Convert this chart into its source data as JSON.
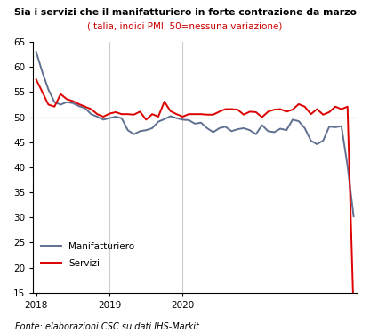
{
  "title_line1": "Sia i servizi che il manifatturiero in forte contrazione da marzo",
  "title_line2": "(Italia, indici PMI, 50=nessuna variazione)",
  "footnote": "Fonte: elaborazioni CSC su dati IHS-Markit.",
  "ylim": [
    15,
    65
  ],
  "yticks": [
    15,
    20,
    25,
    30,
    35,
    40,
    45,
    50,
    55,
    60,
    65
  ],
  "hline_y": 50,
  "legend_labels": [
    "Manifatturiero",
    "Servizi"
  ],
  "manifatturiero_color": "#607090",
  "servizi_color": "#dd0000",
  "background_color": "#ffffff",
  "manifatturiero": [
    63.0,
    59.0,
    55.5,
    53.0,
    52.5,
    53.0,
    52.8,
    52.2,
    51.8,
    50.6,
    50.1,
    49.5,
    49.8,
    50.1,
    49.8,
    47.4,
    46.6,
    47.2,
    47.4,
    47.8,
    49.1,
    49.6,
    50.2,
    49.8,
    49.5,
    49.4,
    48.7,
    48.9,
    47.8,
    47.0,
    47.8,
    48.1,
    47.2,
    47.6,
    47.8,
    47.4,
    46.6,
    48.4,
    47.2,
    47.0,
    47.7,
    47.4,
    49.5,
    49.2,
    47.8,
    45.3,
    44.6,
    45.3,
    48.1,
    48.0,
    48.2,
    40.3,
    30.2
  ],
  "servizi": [
    57.5,
    55.0,
    52.5,
    52.1,
    54.6,
    53.6,
    53.2,
    52.6,
    52.1,
    51.6,
    50.6,
    50.1,
    50.7,
    51.0,
    50.6,
    50.6,
    50.5,
    51.1,
    49.5,
    50.6,
    50.1,
    53.1,
    51.2,
    50.6,
    50.1,
    50.6,
    50.6,
    50.6,
    50.5,
    50.5,
    51.1,
    51.6,
    51.6,
    51.5,
    50.5,
    51.1,
    51.0,
    50.0,
    51.1,
    51.5,
    51.6,
    51.1,
    51.5,
    52.6,
    52.1,
    50.6,
    51.6,
    50.5,
    51.0,
    52.1,
    51.6,
    52.1,
    10.7
  ],
  "n_points": 53,
  "x_start_month": 0,
  "xtick_positions": [
    0,
    12,
    24
  ],
  "xtick_labels": [
    "2018",
    "2019",
    "2020"
  ],
  "vline_positions": [
    12,
    24
  ]
}
